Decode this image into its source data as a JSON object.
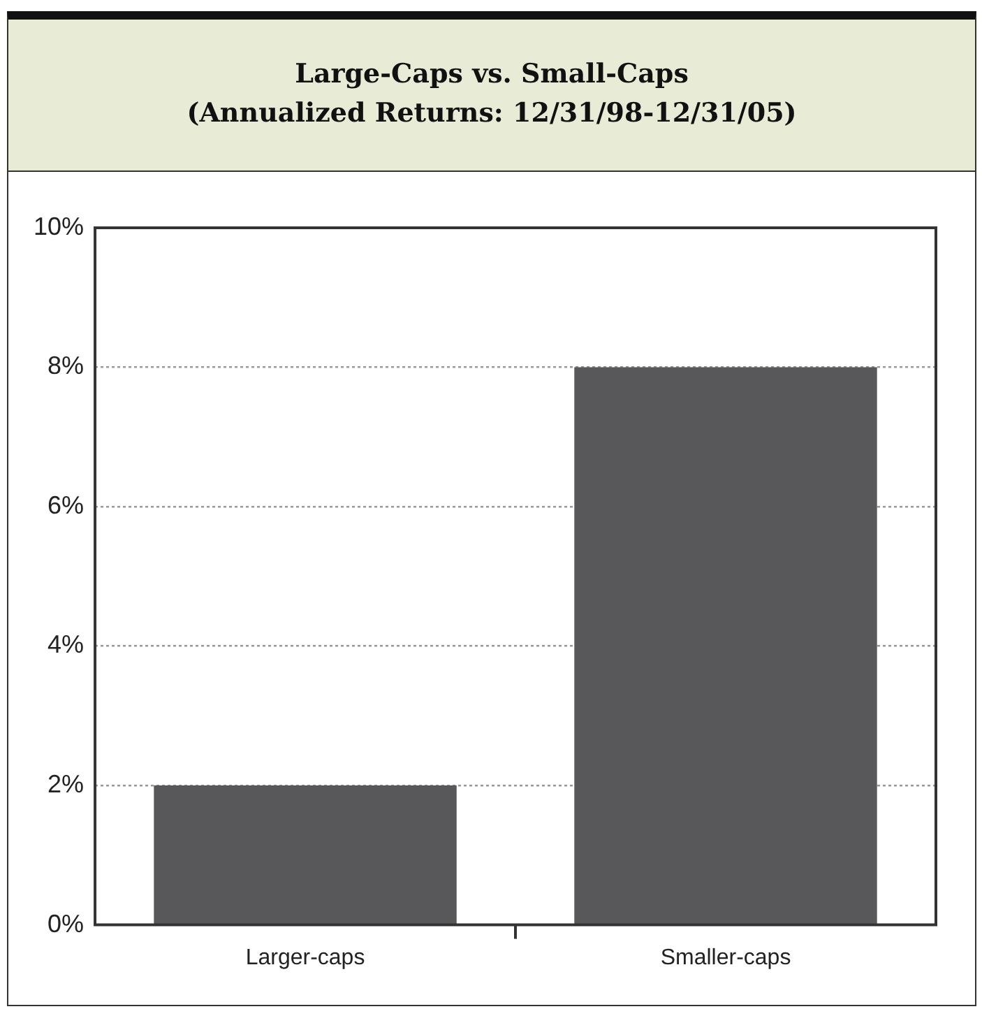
{
  "chart_data": {
    "type": "bar",
    "title": "Large-Caps vs. Small-Caps\n(Annualized Returns: 12/31/98-12/31/05)",
    "categories": [
      "Larger-caps",
      "Smaller-caps"
    ],
    "values": [
      2,
      8
    ],
    "color": "#58585a",
    "ylim": [
      0,
      10
    ],
    "yticks": [
      {
        "value": 0,
        "label": "0%"
      },
      {
        "value": 2,
        "label": "2%"
      },
      {
        "value": 4,
        "label": "4%"
      },
      {
        "value": 6,
        "label": "6%"
      },
      {
        "value": 8,
        "label": "8%"
      },
      {
        "value": 10,
        "label": "10%"
      }
    ],
    "grid": "y",
    "legend": false
  }
}
